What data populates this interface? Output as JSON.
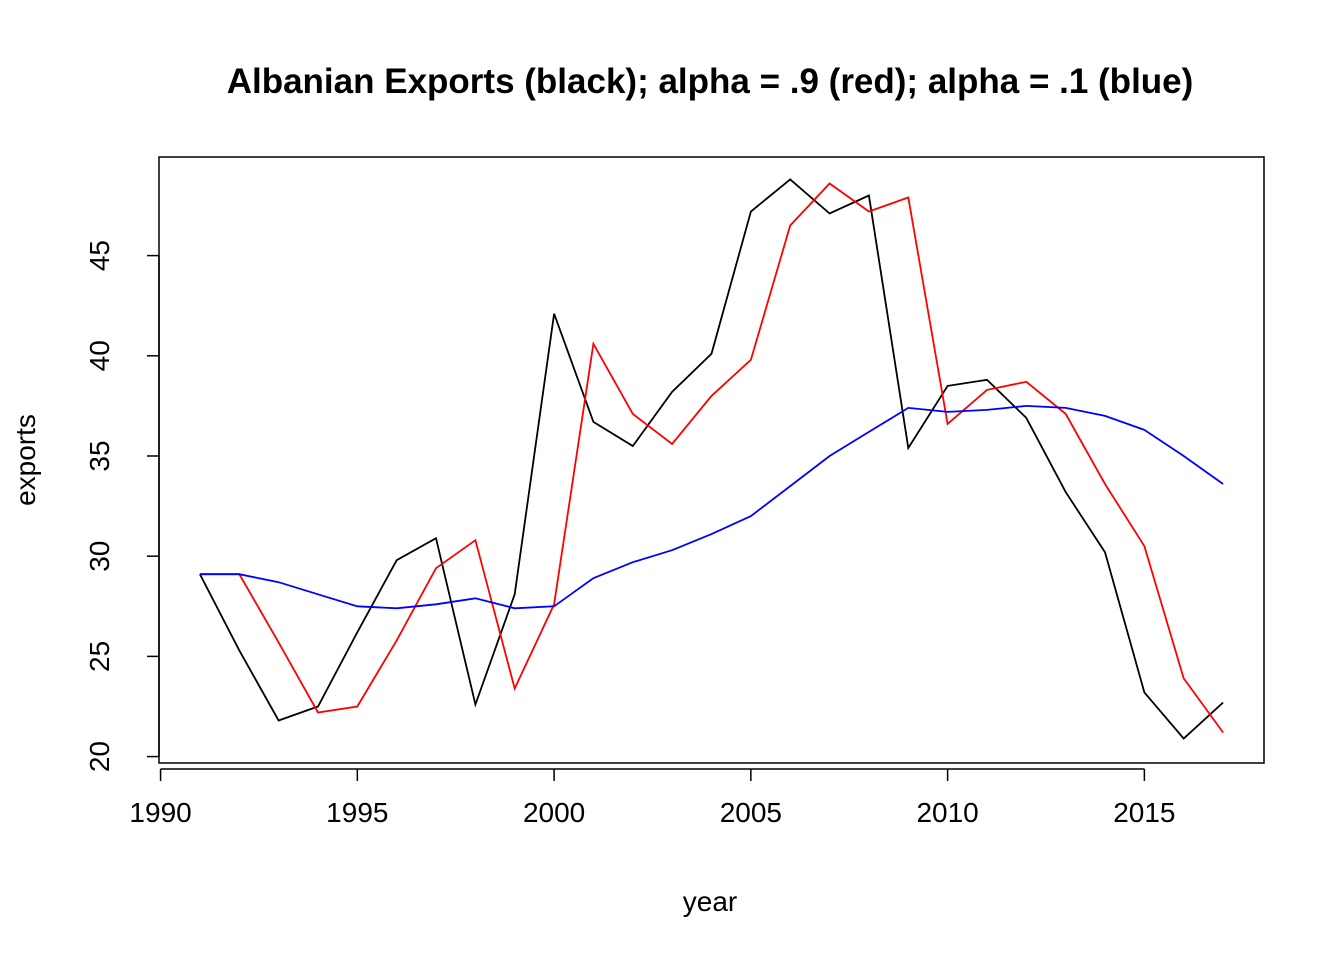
{
  "chart_data": {
    "type": "line",
    "title": "Albanian Exports (black); alpha = .9 (red); alpha = .1 (blue)",
    "xlabel": "year",
    "ylabel": "exports",
    "xlim": [
      1991,
      2017
    ],
    "ylim": [
      20.8,
      48.8
    ],
    "grid": false,
    "x_ticks": [
      1990,
      1995,
      2000,
      2005,
      2010,
      2015
    ],
    "y_ticks": [
      20,
      25,
      30,
      35,
      40,
      45
    ],
    "x": [
      1991,
      1992,
      1993,
      1994,
      1995,
      1996,
      1997,
      1998,
      1999,
      2000,
      2001,
      2002,
      2003,
      2004,
      2005,
      2006,
      2007,
      2008,
      2009,
      2010,
      2011,
      2012,
      2013,
      2014,
      2015,
      2016,
      2017
    ],
    "series": [
      {
        "color": "#000000",
        "values": [
          29.1,
          25.3,
          21.8,
          22.5,
          26.2,
          29.8,
          30.9,
          22.6,
          28.1,
          42.1,
          36.7,
          35.5,
          38.2,
          40.1,
          47.2,
          48.8,
          47.1,
          48.0,
          35.4,
          38.5,
          38.8,
          36.9,
          33.2,
          30.2,
          23.2,
          20.9,
          22.7
        ]
      },
      {
        "color": "#ff0000",
        "values": [
          29.1,
          29.1,
          25.7,
          22.2,
          22.5,
          25.8,
          29.4,
          30.8,
          23.4,
          27.6,
          40.6,
          37.1,
          35.6,
          38.0,
          39.8,
          46.5,
          48.6,
          47.2,
          47.9,
          36.6,
          38.3,
          38.7,
          37.1,
          33.6,
          30.5,
          23.9,
          21.2
        ]
      },
      {
        "color": "#0000ff",
        "values": [
          29.1,
          29.1,
          28.7,
          28.1,
          27.5,
          27.4,
          27.6,
          27.9,
          27.4,
          27.5,
          28.9,
          29.7,
          30.3,
          31.1,
          32.0,
          33.5,
          35.0,
          36.2,
          37.4,
          37.2,
          37.3,
          37.5,
          37.4,
          37.0,
          36.3,
          35.0,
          33.6
        ]
      }
    ]
  }
}
